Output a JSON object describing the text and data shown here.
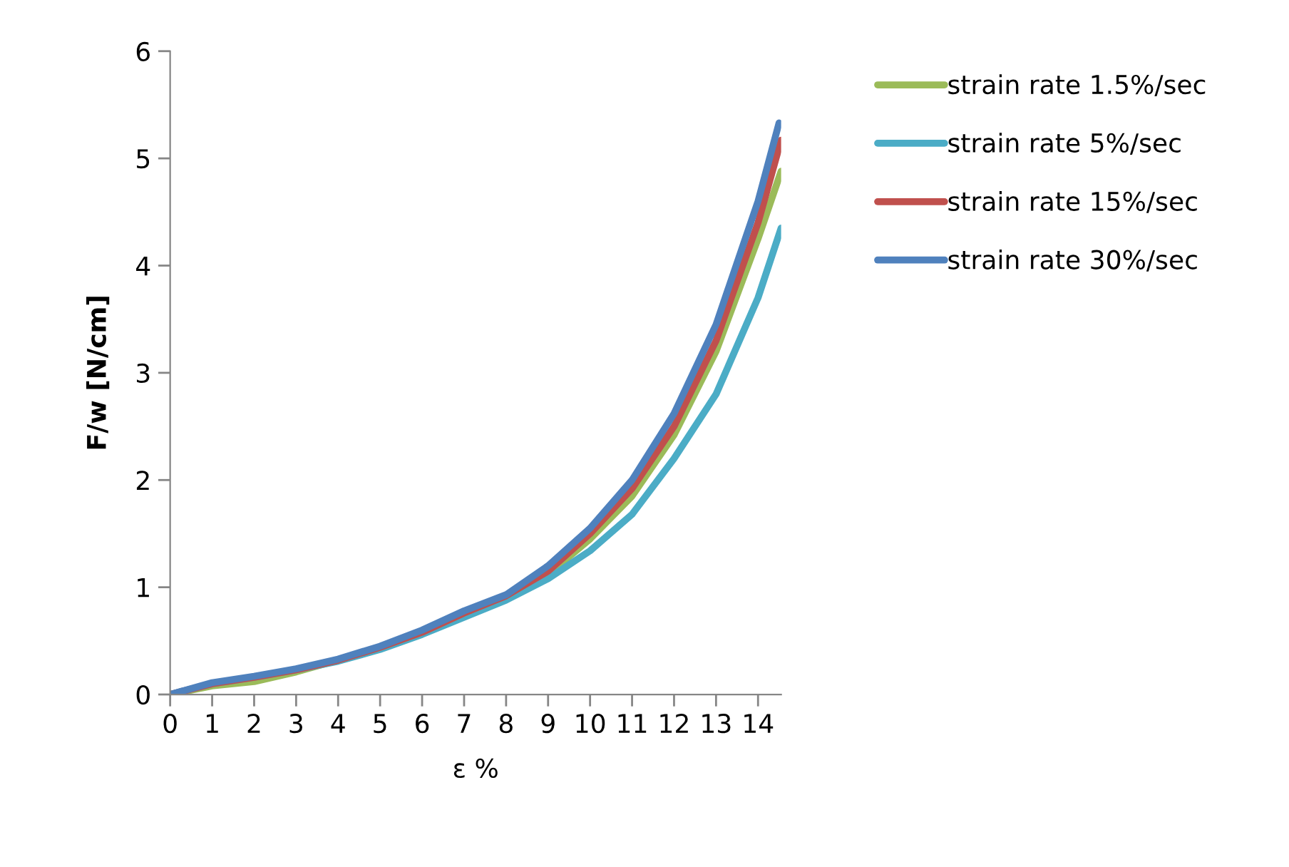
{
  "chart_data": {
    "type": "line",
    "xlabel": "ε %",
    "ylabel": "F/w [N/cm]",
    "xlim": [
      0,
      14.55
    ],
    "xticks": [
      0,
      1,
      2,
      3,
      4,
      5,
      6,
      7,
      8,
      9,
      10,
      11,
      12,
      13,
      14
    ],
    "ylim": [
      0,
      6
    ],
    "yticks": [
      0,
      1,
      2,
      3,
      4,
      5,
      6
    ],
    "grid": false,
    "legend": "top right",
    "marker": "none",
    "line_style": "solid",
    "series": [
      {
        "name": "strain rate 1.5%/sec",
        "color": "#9bbb59",
        "x": [
          0,
          1,
          2,
          3,
          4,
          5,
          6,
          7,
          8,
          9,
          10,
          11,
          12,
          13,
          14,
          14.55
        ],
        "values": [
          0,
          0.08,
          0.12,
          0.21,
          0.32,
          0.44,
          0.58,
          0.74,
          0.9,
          1.12,
          1.45,
          1.85,
          2.42,
          3.2,
          4.25,
          4.88
        ]
      },
      {
        "name": "strain rate 5%/sec",
        "color": "#4bacc6",
        "x": [
          0,
          1,
          2,
          3,
          4,
          5,
          6,
          7,
          8,
          9,
          10,
          11,
          12,
          13,
          14,
          14.55
        ],
        "values": [
          0,
          0.1,
          0.16,
          0.23,
          0.31,
          0.42,
          0.56,
          0.72,
          0.88,
          1.08,
          1.34,
          1.68,
          2.2,
          2.8,
          3.7,
          4.35
        ]
      },
      {
        "name": "strain rate 15%/sec",
        "color": "#c0504d",
        "x": [
          0,
          1,
          2,
          3,
          4,
          5,
          6,
          7,
          8,
          9,
          10,
          11,
          12,
          13,
          14,
          14.55
        ],
        "values": [
          0,
          0.1,
          0.16,
          0.23,
          0.32,
          0.44,
          0.58,
          0.76,
          0.92,
          1.15,
          1.5,
          1.92,
          2.5,
          3.3,
          4.4,
          5.17
        ]
      },
      {
        "name": "strain rate 30%/sec",
        "color": "#4f81bd",
        "x": [
          0,
          1,
          2,
          3,
          4,
          5,
          6,
          7,
          8,
          9,
          10,
          11,
          12,
          13,
          14,
          14.5
        ],
        "values": [
          0,
          0.11,
          0.17,
          0.24,
          0.33,
          0.45,
          0.6,
          0.78,
          0.93,
          1.2,
          1.55,
          2.0,
          2.62,
          3.45,
          4.6,
          5.33
        ]
      }
    ]
  }
}
